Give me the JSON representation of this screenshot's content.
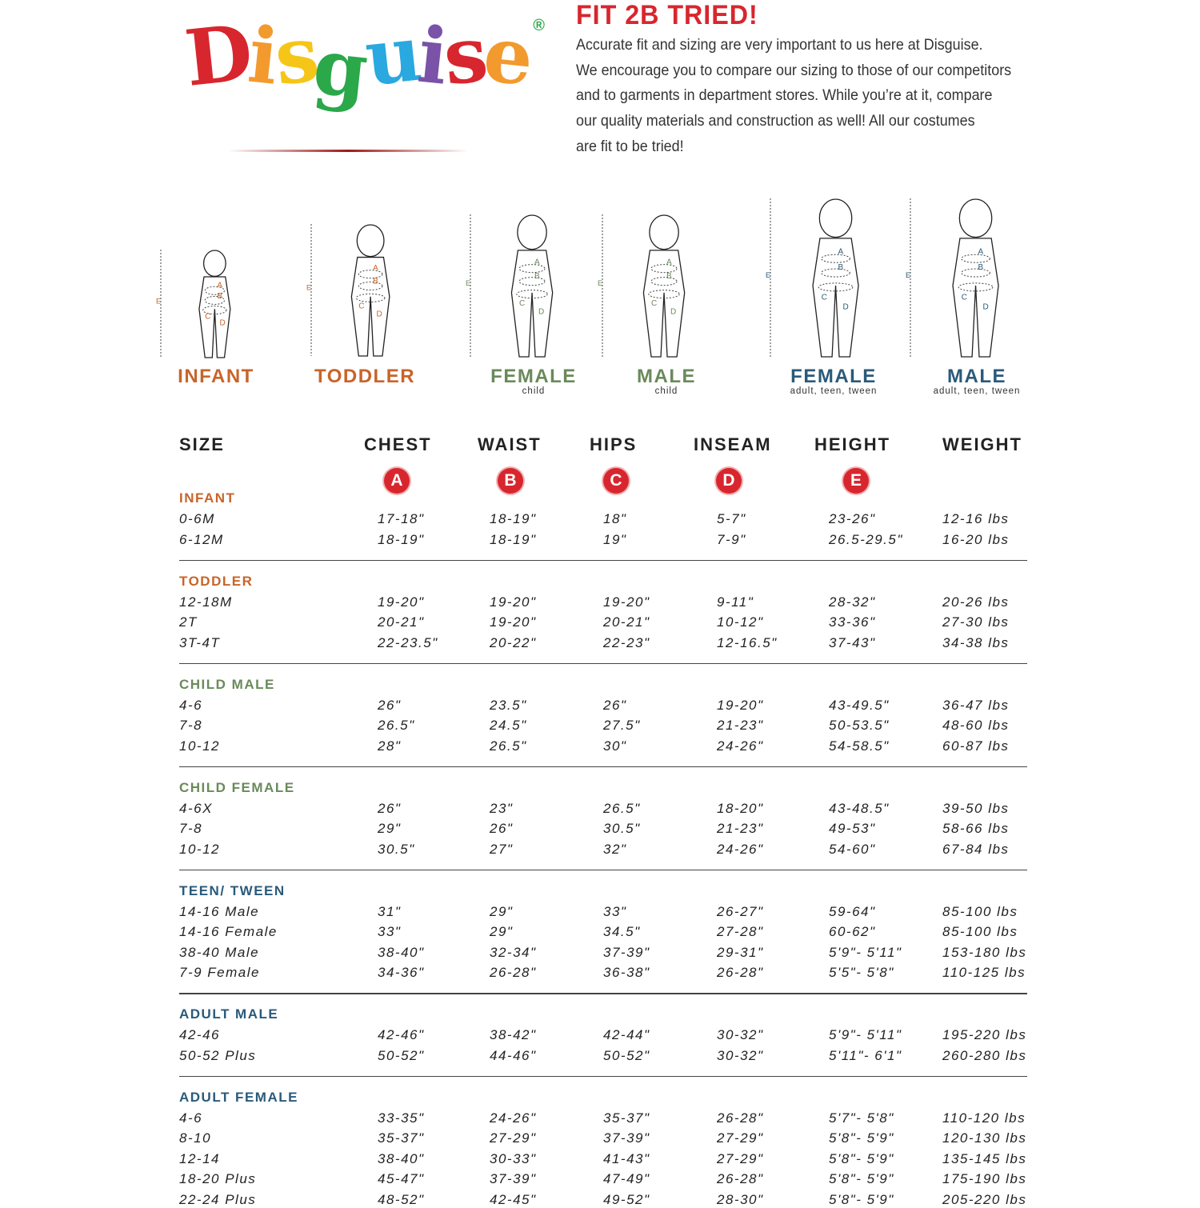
{
  "logo": {
    "text": "Disguise",
    "letters": [
      "D",
      "i",
      "s",
      "g",
      "u",
      "i",
      "s",
      "e"
    ],
    "colors": [
      "#d8262e",
      "#f29a2e",
      "#f5c518",
      "#2aa84a",
      "#2aa8e0",
      "#7a52a8",
      "#d8262e",
      "#f29a2e"
    ],
    "reg": "®"
  },
  "header": {
    "title": "FIT 2B TRIED!",
    "lines": [
      "Accurate fit and sizing are very important to us here at Disguise.",
      "We encourage you to compare our sizing to those of our competitors",
      "and to garments in department stores. While you’re at it, compare",
      "our quality materials and construction as well! All our costumes",
      "are fit to be tried!"
    ]
  },
  "colors": {
    "orange": "#c8642a",
    "green": "#6a8a5a",
    "blue": "#2a5a7a",
    "red": "#d8262e"
  },
  "figures": [
    {
      "label": "INFANT",
      "sub": "",
      "color": "#c8642a"
    },
    {
      "label": "TODDLER",
      "sub": "",
      "color": "#c8642a"
    },
    {
      "label": "FEMALE",
      "sub": "child",
      "color": "#6a8a5a"
    },
    {
      "label": "MALE",
      "sub": "child",
      "color": "#6a8a5a"
    },
    {
      "label": "FEMALE",
      "sub": "adult, teen, tween",
      "color": "#2a5a7a"
    },
    {
      "label": "MALE",
      "sub": "adult, teen, tween",
      "color": "#2a5a7a"
    }
  ],
  "table": {
    "headers": [
      "SIZE",
      "CHEST",
      "WAIST",
      "HIPS",
      "INSEAM",
      "HEIGHT",
      "WEIGHT"
    ],
    "badges": [
      "A",
      "B",
      "C",
      "D",
      "E"
    ],
    "sections": [
      {
        "title": "INFANT",
        "color": "#c8642a",
        "rows": [
          [
            "0-6M",
            "17-18\"",
            "18-19\"",
            "18\"",
            "5-7\"",
            "23-26\"",
            "12-16 lbs"
          ],
          [
            "6-12M",
            "18-19\"",
            "18-19\"",
            "19\"",
            "7-9\"",
            "26.5-29.5\"",
            "16-20 lbs"
          ]
        ]
      },
      {
        "title": "TODDLER",
        "color": "#c8642a",
        "rows": [
          [
            "12-18M",
            "19-20\"",
            "19-20\"",
            "19-20\"",
            "9-11\"",
            "28-32\"",
            "20-26 lbs"
          ],
          [
            "2T",
            "20-21\"",
            "19-20\"",
            "20-21\"",
            "10-12\"",
            "33-36\"",
            "27-30 lbs"
          ],
          [
            "3T-4T",
            "22-23.5\"",
            "20-22\"",
            "22-23\"",
            "12-16.5\"",
            "37-43\"",
            "34-38 lbs"
          ]
        ]
      },
      {
        "title": "CHILD MALE",
        "color": "#6a8a5a",
        "rows": [
          [
            "4-6",
            "26\"",
            "23.5\"",
            "26\"",
            "19-20\"",
            "43-49.5\"",
            "36-47 lbs"
          ],
          [
            "7-8",
            "26.5\"",
            "24.5\"",
            "27.5\"",
            "21-23\"",
            "50-53.5\"",
            "48-60 lbs"
          ],
          [
            "10-12",
            "28\"",
            "26.5\"",
            "30\"",
            "24-26\"",
            "54-58.5\"",
            "60-87 lbs"
          ]
        ]
      },
      {
        "title": "CHILD FEMALE",
        "color": "#6a8a5a",
        "rows": [
          [
            "4-6X",
            "26\"",
            "23\"",
            "26.5\"",
            "18-20\"",
            "43-48.5\"",
            "39-50 lbs"
          ],
          [
            "7-8",
            "29\"",
            "26\"",
            "30.5\"",
            "21-23\"",
            "49-53\"",
            "58-66 lbs"
          ],
          [
            "10-12",
            "30.5\"",
            "27\"",
            "32\"",
            "24-26\"",
            "54-60\"",
            "67-84 lbs"
          ]
        ]
      },
      {
        "title": "TEEN/ TWEEN",
        "color": "#2a5a7a",
        "rows": [
          [
            "14-16 Male",
            "31\"",
            "29\"",
            "33\"",
            "26-27\"",
            "59-64\"",
            "85-100 lbs"
          ],
          [
            "14-16 Female",
            "33\"",
            "29\"",
            "34.5\"",
            "27-28\"",
            "60-62\"",
            "85-100 lbs"
          ],
          [
            "38-40 Male",
            "38-40\"",
            "32-34\"",
            "37-39\"",
            "29-31\"",
            "5'9\"- 5'11\"",
            "153-180 lbs"
          ],
          [
            "7-9 Female",
            "34-36\"",
            "26-28\"",
            "36-38\"",
            "26-28\"",
            "5'5\"- 5'8\"",
            "110-125 lbs"
          ]
        ]
      },
      {
        "title": "ADULT MALE",
        "color": "#2a5a7a",
        "rows": [
          [
            "42-46",
            "42-46\"",
            "38-42\"",
            "42-44\"",
            "30-32\"",
            "5'9\"- 5'11\"",
            "195-220 lbs"
          ],
          [
            "50-52 Plus",
            "50-52\"",
            "44-46\"",
            "50-52\"",
            "30-32\"",
            "5'11\"- 6'1\"",
            "260-280 lbs"
          ]
        ]
      },
      {
        "title": "ADULT FEMALE",
        "color": "#2a5a7a",
        "rows": [
          [
            "4-6",
            "33-35\"",
            "24-26\"",
            "35-37\"",
            "26-28\"",
            "5'7\"- 5'8\"",
            "110-120 lbs"
          ],
          [
            "8-10",
            "35-37\"",
            "27-29\"",
            "37-39\"",
            "27-29\"",
            "5'8\"- 5'9\"",
            "120-130 lbs"
          ],
          [
            "12-14",
            "38-40\"",
            "30-33\"",
            "41-43\"",
            "27-29\"",
            "5'8\"- 5'9\"",
            "135-145 lbs"
          ],
          [
            "18-20 Plus",
            "45-47\"",
            "37-39\"",
            "47-49\"",
            "26-28\"",
            "5'8\"- 5'9\"",
            "175-190 lbs"
          ],
          [
            "22-24 Plus",
            "48-52\"",
            "42-45\"",
            "49-52\"",
            "28-30\"",
            "5'8\"- 5'9\"",
            "205-220 lbs"
          ]
        ]
      }
    ]
  }
}
